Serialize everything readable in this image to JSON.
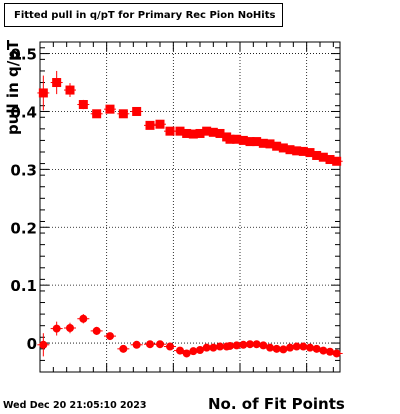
{
  "chart_data": {
    "type": "scatter",
    "title": "Fitted pull in q/pT for Primary Rec Pion NoHits",
    "xlabel": "No. of Fit Points",
    "ylabel": "pull in q/pT",
    "xlim": [
      0,
      45
    ],
    "ylim": [
      -0.05,
      0.52
    ],
    "yticks": [
      0,
      0.1,
      0.2,
      0.3,
      0.4,
      0.5
    ],
    "ytick_labels": [
      "0",
      "0.1",
      "0.2",
      "0.3",
      "0.4",
      "0.5"
    ],
    "grid": true,
    "series": [
      {
        "marker": "square",
        "color": "#ff0000",
        "x": [
          0.5,
          2.5,
          4.5,
          6.5,
          8.5,
          10.5,
          12.5,
          14.5,
          16.5,
          18,
          19.5,
          21,
          22,
          23,
          24,
          25,
          26,
          27,
          28,
          28.5,
          29.5,
          30.5,
          31.5,
          32.5,
          33.5,
          34.5,
          35.5,
          36.5,
          37.5,
          38.5,
          39.5,
          40.5,
          41.5,
          42.5,
          43.5,
          44.5
        ],
        "y": [
          0.432,
          0.45,
          0.437,
          0.412,
          0.396,
          0.404,
          0.396,
          0.4,
          0.376,
          0.378,
          0.366,
          0.366,
          0.362,
          0.361,
          0.362,
          0.366,
          0.364,
          0.362,
          0.356,
          0.352,
          0.352,
          0.35,
          0.348,
          0.348,
          0.345,
          0.344,
          0.34,
          0.337,
          0.334,
          0.332,
          0.331,
          0.329,
          0.324,
          0.321,
          0.317,
          0.314
        ],
        "yerr": [
          0.03,
          0.02,
          0.012,
          0.008,
          0.006,
          0.006,
          0.006,
          0.006,
          0.005,
          0.005,
          0.004,
          0.004,
          0.004,
          0.004,
          0.004,
          0.004,
          0.004,
          0.004,
          0.004,
          0.004,
          0.004,
          0.004,
          0.004,
          0.004,
          0.004,
          0.004,
          0.004,
          0.004,
          0.004,
          0.004,
          0.004,
          0.004,
          0.004,
          0.004,
          0.004,
          0.004
        ]
      },
      {
        "marker": "circle",
        "color": "#ff0000",
        "x": [
          0.5,
          2.5,
          4.5,
          6.5,
          8.5,
          10.5,
          12.5,
          14.5,
          16.5,
          18,
          19.5,
          21,
          22,
          23,
          24,
          25,
          26,
          27,
          28,
          28.5,
          29.5,
          30.5,
          31.5,
          32.5,
          33.5,
          34.5,
          35.5,
          36.5,
          37.5,
          38.5,
          39.5,
          40.5,
          41.5,
          42.5,
          43.5,
          44.5
        ],
        "y": [
          -0.003,
          0.025,
          0.026,
          0.042,
          0.021,
          0.012,
          -0.01,
          -0.003,
          -0.002,
          -0.002,
          -0.006,
          -0.013,
          -0.018,
          -0.014,
          -0.012,
          -0.008,
          -0.008,
          -0.006,
          -0.006,
          -0.005,
          -0.004,
          -0.003,
          -0.002,
          -0.002,
          -0.004,
          -0.008,
          -0.01,
          -0.011,
          -0.008,
          -0.006,
          -0.006,
          -0.008,
          -0.01,
          -0.013,
          -0.015,
          -0.018
        ],
        "yerr": [
          0.02,
          0.012,
          0.009,
          0.008,
          0.007,
          0.006,
          0.005,
          0.005,
          0.004,
          0.004,
          0.004,
          0.004,
          0.004,
          0.004,
          0.004,
          0.004,
          0.004,
          0.004,
          0.004,
          0.004,
          0.004,
          0.004,
          0.004,
          0.004,
          0.004,
          0.004,
          0.004,
          0.004,
          0.004,
          0.004,
          0.004,
          0.004,
          0.004,
          0.004,
          0.004,
          0.004
        ]
      }
    ]
  },
  "footer": {
    "timestamp": "Wed Dec 20 21:05:10 2023"
  }
}
